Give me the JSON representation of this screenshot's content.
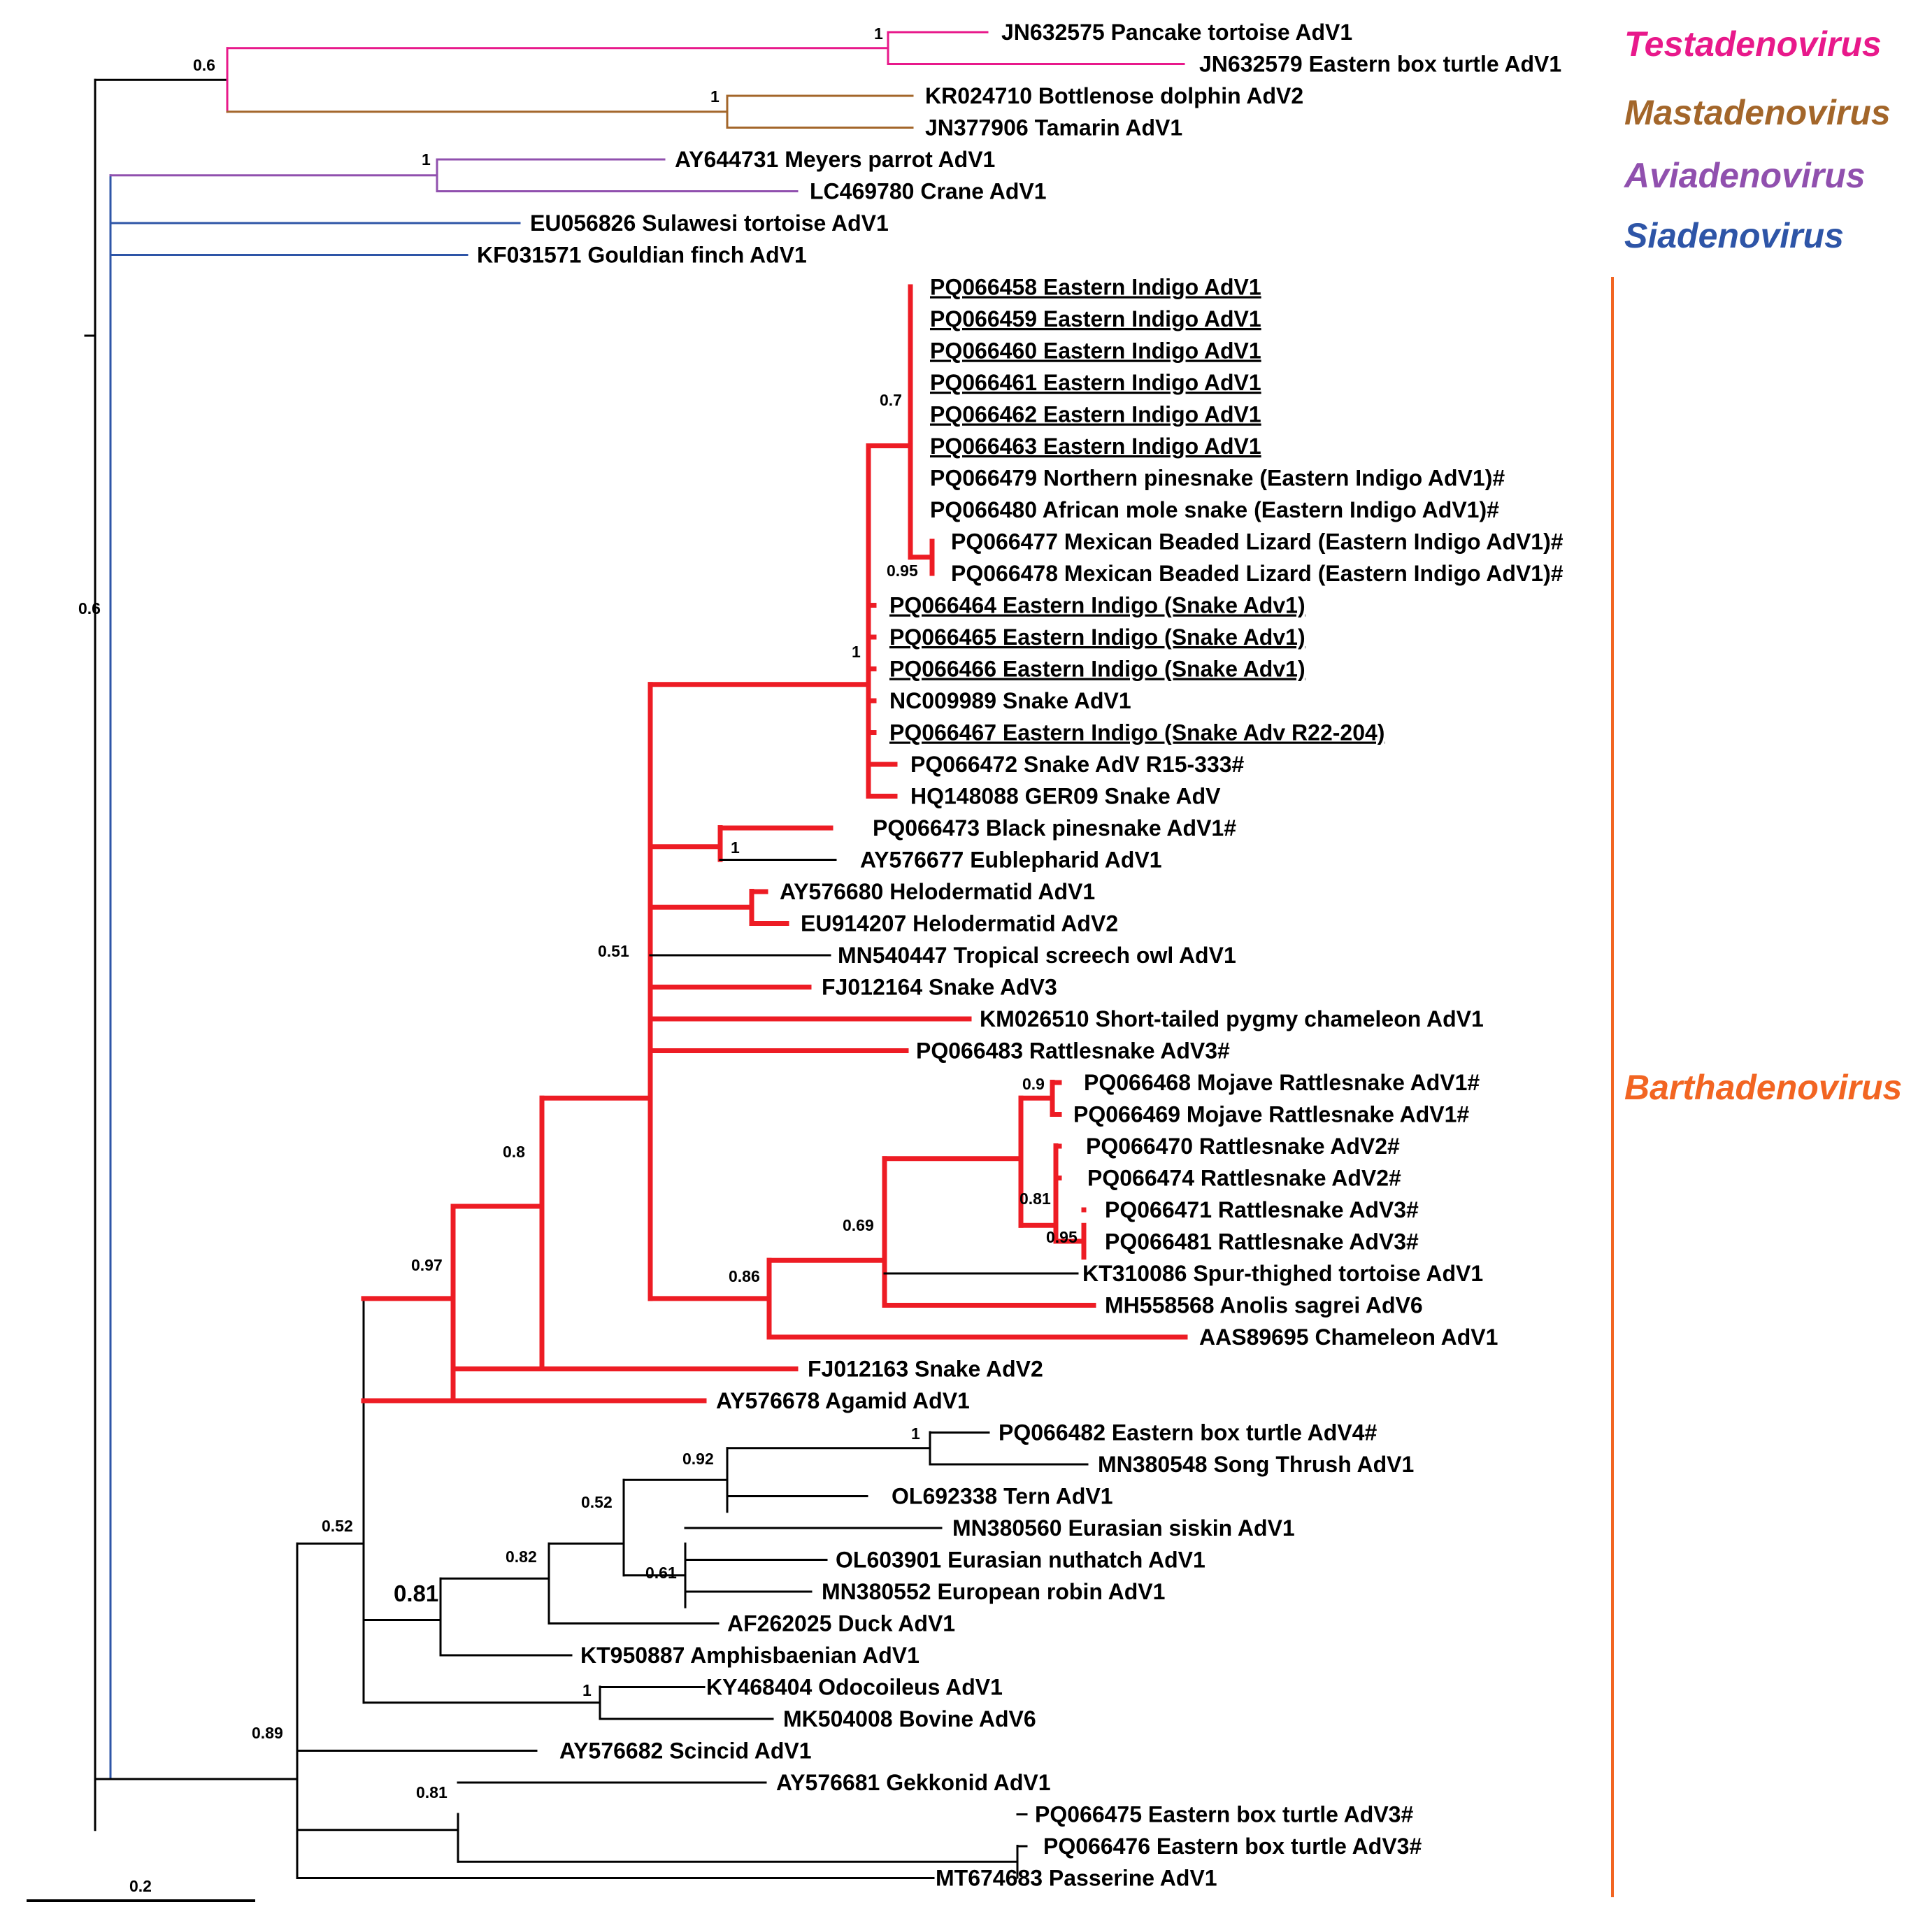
{
  "colors": {
    "default": "#000000",
    "testadenovirus": "#e8198b",
    "mastadenovirus": "#a3662a",
    "aviadenovirus": "#9050ae",
    "siadenovirus": "#2e55a7",
    "barthadenovirus": "#f26522",
    "barth_branch": "#ed1c24"
  },
  "genera": {
    "testadenovirus": "Testadenovirus",
    "mastadenovirus": "Mastadenovirus",
    "aviadenovirus": "Aviadenovirus",
    "siadenovirus": "Siadenovirus",
    "barthadenovirus": "Barthadenovirus"
  },
  "scale_bar": {
    "label": "0.2"
  },
  "tips": [
    {
      "label": "JN632575 Pancake tortoise AdV1",
      "underline": false
    },
    {
      "label": "JN632579 Eastern box turtle AdV1",
      "underline": false
    },
    {
      "label": "KR024710 Bottlenose dolphin AdV2",
      "underline": false
    },
    {
      "label": "JN377906 Tamarin AdV1",
      "underline": false
    },
    {
      "label": "AY644731 Meyers parrot AdV1",
      "underline": false
    },
    {
      "label": "LC469780 Crane AdV1",
      "underline": false
    },
    {
      "label": "EU056826 Sulawesi tortoise AdV1",
      "underline": false
    },
    {
      "label": "KF031571 Gouldian finch AdV1",
      "underline": false
    },
    {
      "label": "PQ066458 Eastern Indigo AdV1",
      "underline": true
    },
    {
      "label": "PQ066459 Eastern Indigo AdV1",
      "underline": true
    },
    {
      "label": "PQ066460 Eastern Indigo AdV1",
      "underline": true
    },
    {
      "label": "PQ066461 Eastern Indigo AdV1",
      "underline": true
    },
    {
      "label": "PQ066462 Eastern Indigo AdV1",
      "underline": true
    },
    {
      "label": "PQ066463 Eastern Indigo AdV1",
      "underline": true
    },
    {
      "label": "PQ066479 Northern pinesnake (Eastern Indigo AdV1)#",
      "underline": false
    },
    {
      "label": "PQ066480 African mole snake (Eastern Indigo AdV1)#",
      "underline": false
    },
    {
      "label": "PQ066477 Mexican Beaded Lizard (Eastern Indigo AdV1)#",
      "underline": false
    },
    {
      "label": "PQ066478 Mexican Beaded Lizard (Eastern Indigo AdV1)#",
      "underline": false
    },
    {
      "label": "PQ066464 Eastern Indigo (Snake Adv1)",
      "underline": true
    },
    {
      "label": "PQ066465 Eastern Indigo (Snake Adv1)",
      "underline": true
    },
    {
      "label": "PQ066466 Eastern Indigo (Snake Adv1)",
      "underline": true
    },
    {
      "label": "NC009989 Snake AdV1",
      "underline": false
    },
    {
      "label": "PQ066467 Eastern Indigo (Snake Adv R22-204)",
      "underline": true
    },
    {
      "label": "PQ066472 Snake AdV R15-333#",
      "underline": false
    },
    {
      "label": "HQ148088 GER09 Snake AdV",
      "underline": false
    },
    {
      "label": "PQ066473 Black pinesnake AdV1#",
      "underline": false
    },
    {
      "label": "AY576677 Eublepharid AdV1",
      "underline": false
    },
    {
      "label": "AY576680 Helodermatid AdV1",
      "underline": false
    },
    {
      "label": "EU914207 Helodermatid AdV2",
      "underline": false
    },
    {
      "label": "MN540447 Tropical screech owl AdV1",
      "underline": false
    },
    {
      "label": "FJ012164 Snake AdV3",
      "underline": false
    },
    {
      "label": "KM026510 Short-tailed pygmy chameleon AdV1",
      "underline": false
    },
    {
      "label": "PQ066483 Rattlesnake AdV3#",
      "underline": false
    },
    {
      "label": "PQ066468 Mojave Rattlesnake AdV1#",
      "underline": false
    },
    {
      "label": "PQ066469 Mojave Rattlesnake AdV1#",
      "underline": false
    },
    {
      "label": "PQ066470 Rattlesnake AdV2#",
      "underline": false
    },
    {
      "label": "PQ066474 Rattlesnake AdV2#",
      "underline": false
    },
    {
      "label": "PQ066471 Rattlesnake AdV3#",
      "underline": false
    },
    {
      "label": "PQ066481 Rattlesnake AdV3#",
      "underline": false
    },
    {
      "label": "KT310086 Spur-thighed tortoise AdV1",
      "underline": false
    },
    {
      "label": "MH558568 Anolis sagrei AdV6",
      "underline": false
    },
    {
      "label": "AAS89695 Chameleon AdV1",
      "underline": false
    },
    {
      "label": "FJ012163 Snake AdV2",
      "underline": false
    },
    {
      "label": "AY576678 Agamid AdV1",
      "underline": false
    },
    {
      "label": "PQ066482 Eastern box turtle AdV4#",
      "underline": false
    },
    {
      "label": "MN380548 Song Thrush AdV1",
      "underline": false
    },
    {
      "label": "OL692338 Tern AdV1",
      "underline": false
    },
    {
      "label": "MN380560 Eurasian siskin AdV1",
      "underline": false
    },
    {
      "label": "OL603901 Eurasian nuthatch AdV1",
      "underline": false
    },
    {
      "label": "MN380552 European robin AdV1",
      "underline": false
    },
    {
      "label": "AF262025 Duck AdV1",
      "underline": false
    },
    {
      "label": "KT950887 Amphisbaenian AdV1",
      "underline": false
    },
    {
      "label": "KY468404 Odocoileus AdV1",
      "underline": false
    },
    {
      "label": "MK504008 Bovine AdV6",
      "underline": false
    },
    {
      "label": "AY576682 Scincid AdV1",
      "underline": false
    },
    {
      "label": "AY576681 Gekkonid AdV1",
      "underline": false
    },
    {
      "label": "PQ066475 Eastern box turtle AdV3#",
      "underline": false
    },
    {
      "label": "PQ066476 Eastern box turtle AdV3#",
      "underline": false
    },
    {
      "label": "MT674683 Passerine AdV1",
      "underline": false
    }
  ],
  "supports": [
    {
      "value": "0.6"
    },
    {
      "value": "1"
    },
    {
      "value": "1"
    },
    {
      "value": "1"
    },
    {
      "value": "0.6"
    },
    {
      "value": "0.7"
    },
    {
      "value": "0.95"
    },
    {
      "value": "1"
    },
    {
      "value": "1"
    },
    {
      "value": "0.51"
    },
    {
      "value": "0.9"
    },
    {
      "value": "0.81"
    },
    {
      "value": "0.95"
    },
    {
      "value": "0.69"
    },
    {
      "value": "0.86"
    },
    {
      "value": "0.8"
    },
    {
      "value": "0.97"
    },
    {
      "value": "1"
    },
    {
      "value": "0.92"
    },
    {
      "value": "0.52"
    },
    {
      "value": "0.61"
    },
    {
      "value": "0.82"
    },
    {
      "value": "0.81"
    },
    {
      "value": "1"
    },
    {
      "value": "0.52"
    },
    {
      "value": "0.89"
    },
    {
      "value": "0.81"
    }
  ]
}
